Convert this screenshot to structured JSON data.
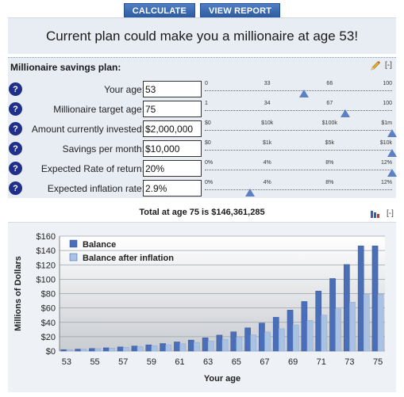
{
  "toolbar": {
    "calculate_label": "CALCULATE",
    "view_report_label": "VIEW REPORT"
  },
  "headline": "Current plan could make you a millionaire at age 53!",
  "panel": {
    "title": "Millionaire savings plan:",
    "collapse": "[-]",
    "rows": [
      {
        "label": "Your age:",
        "value": "53",
        "ticks": [
          "0",
          "33",
          "66",
          "100"
        ],
        "level": 0.53
      },
      {
        "label": "Millionaire target age:",
        "value": "75",
        "ticks": [
          "1",
          "34",
          "67",
          "100"
        ],
        "level": 0.75
      },
      {
        "label": "Amount currently invested:",
        "value": "$2,000,000",
        "ticks": [
          "$0",
          "$10k",
          "$100k",
          "$1m"
        ],
        "level": 1.0
      },
      {
        "label": "Savings per month:",
        "value": "$10,000",
        "ticks": [
          "$0",
          "$1k",
          "$5k",
          "$10k"
        ],
        "level": 1.0
      },
      {
        "label": "Expected Rate of return:",
        "value": "20%",
        "ticks": [
          "0%",
          "4%",
          "8%",
          "12%"
        ],
        "level": 1.0
      },
      {
        "label": "Expected inflation rate:",
        "value": "2.9%",
        "ticks": [
          "0%",
          "4%",
          "8%",
          "12%"
        ],
        "level": 0.24
      }
    ],
    "help_glyph": "?"
  },
  "total": {
    "text": "Total at age 75 is $146,361,285",
    "collapse": "[-]"
  },
  "chart_data": {
    "type": "bar",
    "ylabel": "Millions of Dollars",
    "xlabel": "Your age",
    "ylim": [
      0,
      160
    ],
    "yticks": [
      "$0",
      "$20",
      "$40",
      "$60",
      "$80",
      "$100",
      "$120",
      "$140",
      "$160"
    ],
    "x_tick_labels": [
      "53",
      "55",
      "57",
      "59",
      "61",
      "63",
      "65",
      "67",
      "69",
      "71",
      "73",
      "75"
    ],
    "legend_position": "top-left",
    "grid": true,
    "categories": [
      53,
      54,
      55,
      56,
      57,
      58,
      59,
      60,
      61,
      62,
      63,
      64,
      65,
      66,
      67,
      68,
      69,
      70,
      71,
      72,
      73,
      74,
      75
    ],
    "series": [
      {
        "name": "Balance",
        "color": "#4a6fb8",
        "values": [
          2.0,
          2.7,
          3.5,
          4.5,
          5.7,
          7.0,
          8.6,
          10.5,
          12.7,
          15.3,
          18.4,
          22.2,
          26.8,
          32.4,
          39.0,
          47.0,
          57.0,
          69.0,
          83.5,
          101.0,
          120.5,
          146.4,
          146.4
        ]
      },
      {
        "name": "Balance after inflation",
        "color": "#a9c2e4",
        "values": [
          2.0,
          2.6,
          3.3,
          4.1,
          5.1,
          6.1,
          7.3,
          8.7,
          10.2,
          12.0,
          14.0,
          16.4,
          19.3,
          22.6,
          26.5,
          31.0,
          36.4,
          42.7,
          50.0,
          58.7,
          68.0,
          79.0,
          79.0
        ]
      }
    ]
  }
}
